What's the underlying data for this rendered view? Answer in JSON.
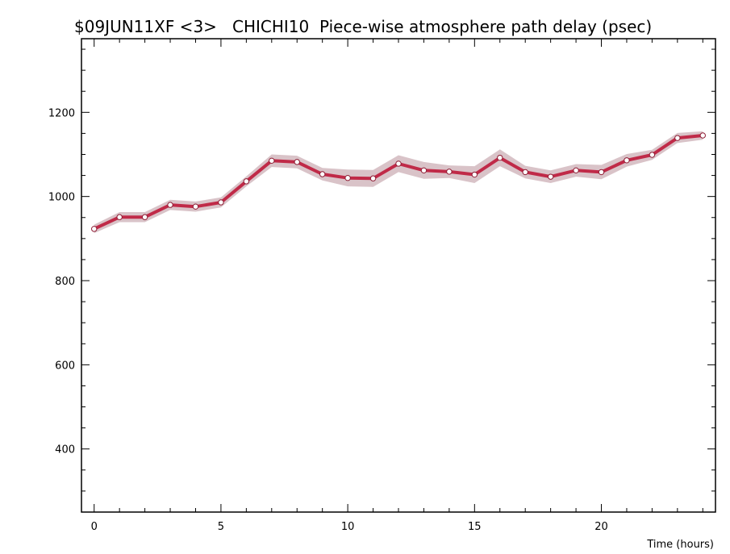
{
  "chart_data": {
    "type": "line",
    "title": "$09JUN11XF <3>   CHICHI10  Piece-wise atmosphere path delay (psec)",
    "xlabel": "Time (hours)",
    "ylabel": "",
    "xlim": [
      -0.5,
      24.5
    ],
    "ylim": [
      250,
      1375
    ],
    "x_ticks": [
      0,
      5,
      10,
      15,
      20
    ],
    "x_tick_labels": [
      "0",
      "5",
      "10",
      "15",
      "20"
    ],
    "y_ticks": [
      400,
      600,
      800,
      1000,
      1200
    ],
    "y_tick_labels": [
      "400",
      "600",
      "800",
      "1000",
      "1200"
    ],
    "grid": false,
    "series": [
      {
        "x": [
          0,
          1,
          2,
          3,
          4,
          5,
          6,
          7,
          8,
          9,
          10,
          11,
          12,
          13,
          14,
          15,
          16,
          17,
          18,
          19,
          20,
          21,
          22,
          23,
          24
        ],
        "values": [
          923,
          951,
          951,
          980,
          976,
          986,
          1036,
          1085,
          1082,
          1053,
          1044,
          1043,
          1078,
          1062,
          1059,
          1052,
          1092,
          1058,
          1047,
          1062,
          1058,
          1086,
          1099,
          1139,
          1145
        ],
        "uncertainty": [
          10,
          12,
          12,
          12,
          12,
          12,
          12,
          15,
          15,
          15,
          20,
          20,
          20,
          20,
          15,
          20,
          20,
          15,
          15,
          15,
          17,
          15,
          12,
          12,
          10
        ],
        "color": "#c02a48",
        "band_color": "#d9c3c8"
      }
    ]
  }
}
